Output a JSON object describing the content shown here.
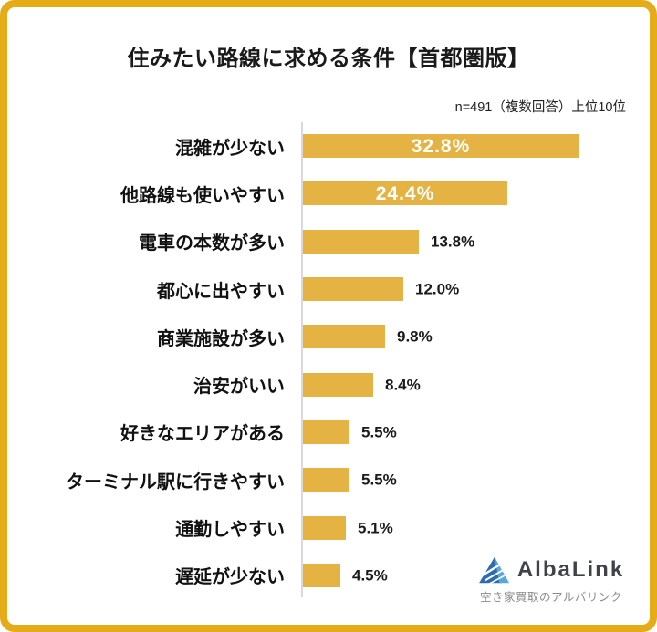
{
  "header": {
    "title": "住みたい路線に求める条件【首都圏版】",
    "note": "n=491（複数回答）上位10位"
  },
  "chart_data": {
    "type": "bar",
    "orientation": "horizontal",
    "title": "住みたい路線に求める条件【首都圏版】",
    "annotation": "n=491（複数回答）上位10位",
    "categories": [
      "混雑が少ない",
      "他路線も使いやすい",
      "電車の本数が多い",
      "都心に出やすい",
      "商業施設が多い",
      "治安がいい",
      "好きなエリアがある",
      "ターミナル駅に行きやすい",
      "通勤しやすい",
      "遅延が少ない"
    ],
    "values": [
      32.8,
      24.4,
      13.8,
      12.0,
      9.8,
      8.4,
      5.5,
      5.5,
      5.1,
      4.5
    ],
    "value_labels": [
      "32.8%",
      "24.4%",
      "13.8%",
      "12.0%",
      "9.8%",
      "8.4%",
      "5.5%",
      "5.5%",
      "5.1%",
      "4.5%"
    ],
    "xlim": [
      0,
      35
    ],
    "grid": false,
    "legend": false,
    "bar_color": "#E5B344",
    "value_label_inside_color": "#FFFFFF",
    "value_label_outside_color": "#1A1A1A"
  },
  "logo": {
    "name": "AlbaLink",
    "tagline": "空き家買取のアルバリンク",
    "icon": "mountain-triangle-icon",
    "icon_colors": {
      "dark_blue": "#2E6BB0",
      "light_blue": "#5AA7DE"
    }
  },
  "colors": {
    "frame_border": "#E6AC18",
    "axis_line": "#D9D9D9",
    "title_text": "#1A1A1A",
    "category_text": "#111111",
    "tagline_gray": "#8B8B8B",
    "logo_text": "#3F4249"
  }
}
